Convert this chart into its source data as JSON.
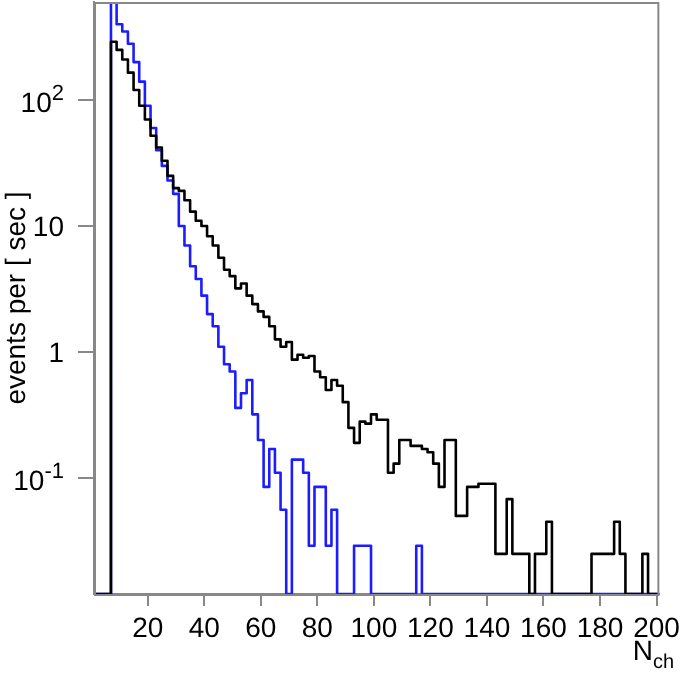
{
  "chart_data": {
    "type": "histogram",
    "xlabel": "N$_{ch}$",
    "ylabel": "events per [ sec ]",
    "bins": [
      1,
      3,
      5,
      7,
      9,
      11,
      13,
      15,
      17,
      19,
      21,
      23,
      25,
      27,
      29,
      31,
      33,
      35,
      37,
      39,
      41,
      43,
      45,
      47,
      49,
      51,
      53,
      55,
      57,
      59,
      61,
      63,
      65,
      67,
      69,
      71,
      73,
      75,
      77,
      79,
      81,
      83,
      85,
      87,
      89,
      91,
      93,
      95,
      97,
      99,
      101,
      103,
      105,
      107,
      109,
      111,
      113,
      115,
      117,
      119,
      121,
      123,
      125,
      127,
      129,
      131,
      133,
      135,
      137,
      139,
      141,
      143,
      145,
      147,
      149,
      151,
      153,
      155,
      157,
      159,
      161,
      163,
      165,
      167,
      169,
      171,
      173,
      175,
      177,
      179,
      181,
      183,
      185,
      187,
      189,
      191,
      193,
      195,
      197,
      199,
      201
    ],
    "series": [
      {
        "color": "#000000",
        "values": [
          null,
          null,
          null,
          290,
          250,
          210,
          165,
          120,
          90,
          70,
          52,
          42,
          33,
          25,
          20,
          19,
          16,
          13,
          11,
          10,
          8.3,
          7,
          5.6,
          4.5,
          4,
          3.2,
          3.5,
          2.8,
          2.4,
          2.1,
          1.9,
          1.6,
          1.26,
          1.1,
          1.2,
          0.87,
          0.95,
          0.9,
          0.93,
          0.7,
          0.63,
          0.5,
          0.6,
          0.54,
          0.4,
          0.25,
          0.19,
          0.28,
          0.27,
          0.32,
          0.29,
          0.29,
          0.11,
          0.13,
          0.2,
          0.2,
          0.18,
          0.18,
          0.17,
          0.16,
          0.13,
          0.085,
          0.2,
          0.2,
          0.05,
          0.05,
          0.085,
          0.085,
          0.09,
          0.09,
          0.09,
          0.025,
          0.025,
          0.068,
          0.025,
          0.025,
          0.025,
          null,
          0.025,
          0.025,
          0.045,
          null,
          null,
          null,
          null,
          null,
          null,
          null,
          0.025,
          0.025,
          0.025,
          0.025,
          0.045,
          0.025,
          null,
          null,
          null,
          0.025,
          null,
          null
        ]
      },
      {
        "color": "#1c1cff",
        "values": [
          null,
          null,
          null,
          600,
          400,
          350,
          280,
          200,
          140,
          90,
          60,
          40,
          30,
          23,
          18,
          10,
          7,
          4.8,
          3.8,
          2.8,
          2,
          1.6,
          1.1,
          0.8,
          0.7,
          0.36,
          0.47,
          0.6,
          0.32,
          0.2,
          0.085,
          0.17,
          0.11,
          0.056,
          null,
          0.14,
          0.14,
          0.11,
          0.029,
          0.085,
          0.085,
          0.029,
          0.056,
          null,
          null,
          null,
          0.029,
          0.029,
          0.029,
          null,
          null,
          null,
          null,
          null,
          null,
          null,
          null,
          0.029,
          null,
          null,
          null,
          null,
          null,
          null,
          null,
          null,
          null,
          null,
          null,
          null,
          null,
          null,
          null,
          null,
          null,
          null,
          null,
          null,
          null,
          null,
          null,
          null,
          null,
          null,
          null,
          null,
          null,
          null,
          null,
          null,
          null,
          null,
          null,
          null,
          null,
          null,
          null,
          null,
          null,
          null
        ]
      }
    ],
    "log": "y",
    "xlim": [
      1,
      201
    ],
    "ylim": [
      0.012,
      600
    ],
    "xticks": [
      20,
      40,
      60,
      80,
      100,
      120,
      140,
      160,
      180,
      200
    ],
    "yticks": [
      {
        "value": 0.1,
        "label": "10$^{-1}$"
      },
      1,
      10,
      {
        "value": 100,
        "label": "10$^{2}$"
      }
    ],
    "grid": false,
    "legend": false
  }
}
